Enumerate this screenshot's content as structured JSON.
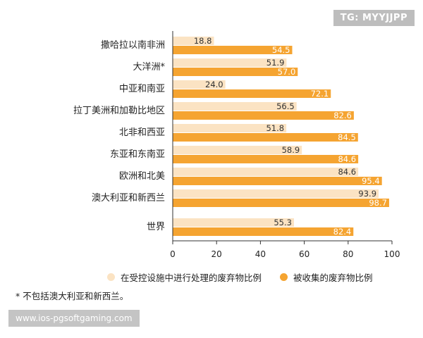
{
  "watermark_top": "TG: MYYJJPP",
  "watermark_bottom": "www.ios-pgsoftgaming.com",
  "footnote": "* 不包括澳大利亚和新西兰。",
  "legend": [
    {
      "label": "在受控设施中进行处理的废弃物比例",
      "color": "#fbe3c3"
    },
    {
      "label": "被收集的废弃物比例",
      "color": "#f5a431"
    }
  ],
  "chart_data": {
    "type": "bar",
    "orientation": "horizontal",
    "categories": [
      "撒哈拉以南非洲",
      "大洋洲*",
      "中亚和南亚",
      "拉丁美洲和加勒比地区",
      "北非和西亚",
      "东亚和东南亚",
      "欧洲和北美",
      "澳大利亚和新西兰",
      "世界"
    ],
    "series": [
      {
        "name": "在受控设施中进行处理的废弃物比例",
        "color": "#fbe3c3",
        "values": [
          18.8,
          51.9,
          24.0,
          56.5,
          51.8,
          58.9,
          84.6,
          93.9,
          55.3
        ]
      },
      {
        "name": "被收集的废弃物比例",
        "color": "#f5a431",
        "values": [
          54.5,
          57.0,
          72.1,
          82.6,
          84.5,
          84.6,
          95.4,
          98.7,
          82.4
        ]
      }
    ],
    "xlim": [
      0,
      100
    ],
    "xticks": [
      0,
      20,
      40,
      60,
      80,
      100
    ],
    "grid": false,
    "legend_position": "bottom"
  }
}
